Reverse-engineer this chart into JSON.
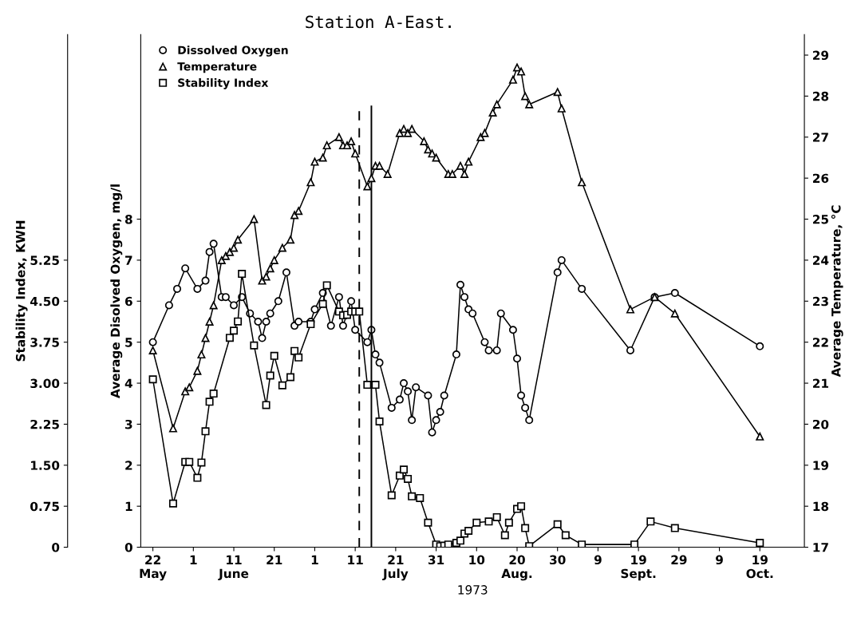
{
  "chart_data": {
    "type": "line",
    "title": "Station A-East.",
    "xlabel": "1973",
    "ylabel": "Average Disolved Oxygen, mg/l",
    "y2label": "Average Temperature, °C",
    "y3label": "Stability Index, KWH",
    "xlim": [
      "1973-05-19",
      "1973-10-30"
    ],
    "xticks": [
      {
        "value": "1973-05-22",
        "label": "22\nMay"
      },
      {
        "value": "1973-06-01",
        "label": "1\n"
      },
      {
        "value": "1973-06-11",
        "label": "11\nJune"
      },
      {
        "value": "1973-06-21",
        "label": "21\n"
      },
      {
        "value": "1973-07-01",
        "label": "1\n"
      },
      {
        "value": "1973-07-11",
        "label": "11\n"
      },
      {
        "value": "1973-07-21",
        "label": "21\nJuly"
      },
      {
        "value": "1973-07-31",
        "label": "31\n"
      },
      {
        "value": "1973-08-10",
        "label": "10\n"
      },
      {
        "value": "1973-08-20",
        "label": "20\nAug."
      },
      {
        "value": "1973-08-30",
        "label": "30\n"
      },
      {
        "value": "1973-09-09",
        "label": "9\n"
      },
      {
        "value": "1973-09-19",
        "label": "19\nSept."
      },
      {
        "value": "1973-09-29",
        "label": "29\n"
      },
      {
        "value": "1973-10-09",
        "label": "9\n"
      },
      {
        "value": "1973-10-19",
        "label": "19\nOct."
      }
    ],
    "ylim": [
      0,
      12.5
    ],
    "yticks": [
      0,
      1,
      2,
      3,
      4,
      5,
      6,
      7,
      8
    ],
    "y2lim": [
      17,
      29.5
    ],
    "y2ticks": [
      17,
      18,
      19,
      20,
      21,
      22,
      23,
      24,
      25,
      26,
      27,
      28,
      29
    ],
    "y3lim": [
      0,
      9.375
    ],
    "y3ticks": [
      0,
      0.75,
      {
        "value": 1.5,
        "label": "1.50"
      },
      2.25,
      {
        "value": 3.0,
        "label": "3.00"
      },
      3.75,
      {
        "value": 4.5,
        "label": "4.50"
      },
      5.25
    ],
    "legend": "top left",
    "ref_lines": [
      {
        "axis": "x",
        "value": "1973-07-12",
        "line_style": "dashed",
        "color": "#000000"
      },
      {
        "axis": "x",
        "value": "1973-07-15",
        "line_style": "solid",
        "color": "#000000"
      }
    ],
    "series": [
      {
        "name": "Dissolved Oxygen",
        "color": "#000000",
        "axis": "y",
        "marker": "circle",
        "line_style": "solid",
        "x": [
          "1973-05-22",
          "1973-05-26",
          "1973-05-28",
          "1973-05-30",
          "1973-06-02",
          "1973-06-04",
          "1973-06-05",
          "1973-06-06",
          "1973-06-08",
          "1973-06-09",
          "1973-06-11",
          "1973-06-13",
          "1973-06-15",
          "1973-06-17",
          "1973-06-18",
          "1973-06-19",
          "1973-06-20",
          "1973-06-22",
          "1973-06-24",
          "1973-06-26",
          "1973-06-27",
          "1973-06-30",
          "1973-07-01",
          "1973-07-03",
          "1973-07-05",
          "1973-07-07",
          "1973-07-08",
          "1973-07-10",
          "1973-07-11",
          "1973-07-14",
          "1973-07-15",
          "1973-07-16",
          "1973-07-17",
          "1973-07-20",
          "1973-07-22",
          "1973-07-23",
          "1973-07-24",
          "1973-07-25",
          "1973-07-26",
          "1973-07-29",
          "1973-07-30",
          "1973-07-31",
          "1973-08-01",
          "1973-08-02",
          "1973-08-05",
          "1973-08-06",
          "1973-08-07",
          "1973-08-08",
          "1973-08-09",
          "1973-08-12",
          "1973-08-13",
          "1973-08-15",
          "1973-08-16",
          "1973-08-19",
          "1973-08-20",
          "1973-08-21",
          "1973-08-22",
          "1973-08-23",
          "1973-08-30",
          "1973-08-31",
          "1973-09-05",
          "1973-09-17",
          "1973-09-23",
          "1973-09-28",
          "1973-10-19"
        ],
        "values": [
          5.0,
          5.9,
          6.3,
          6.8,
          6.3,
          6.5,
          7.2,
          7.4,
          6.1,
          6.1,
          5.9,
          6.1,
          5.7,
          5.5,
          5.1,
          5.5,
          5.7,
          6.0,
          6.7,
          5.4,
          5.5,
          5.5,
          5.8,
          6.2,
          5.4,
          6.1,
          5.4,
          6.0,
          5.3,
          5.0,
          5.3,
          4.7,
          4.5,
          3.4,
          3.6,
          4.0,
          3.8,
          3.1,
          3.9,
          3.7,
          2.8,
          3.1,
          3.3,
          3.7,
          4.7,
          6.4,
          6.1,
          5.8,
          5.7,
          5.0,
          4.8,
          4.8,
          5.7,
          5.3,
          4.6,
          3.7,
          3.4,
          3.1,
          6.7,
          7.0,
          6.3,
          4.8,
          6.1,
          6.2,
          4.9
        ]
      },
      {
        "name": "Temperature",
        "color": "#000000",
        "axis": "y2",
        "marker": "triangle",
        "line_style": "solid",
        "x": [
          "1973-05-22",
          "1973-05-27",
          "1973-05-30",
          "1973-05-31",
          "1973-06-02",
          "1973-06-03",
          "1973-06-04",
          "1973-06-05",
          "1973-06-06",
          "1973-06-08",
          "1973-06-09",
          "1973-06-10",
          "1973-06-11",
          "1973-06-12",
          "1973-06-16",
          "1973-06-18",
          "1973-06-19",
          "1973-06-20",
          "1973-06-21",
          "1973-06-23",
          "1973-06-25",
          "1973-06-26",
          "1973-06-27",
          "1973-06-30",
          "1973-07-01",
          "1973-07-03",
          "1973-07-04",
          "1973-07-07",
          "1973-07-08",
          "1973-07-09",
          "1973-07-10",
          "1973-07-11",
          "1973-07-14",
          "1973-07-15",
          "1973-07-16",
          "1973-07-17",
          "1973-07-19",
          "1973-07-22",
          "1973-07-23",
          "1973-07-24",
          "1973-07-25",
          "1973-07-28",
          "1973-07-29",
          "1973-07-30",
          "1973-07-31",
          "1973-08-03",
          "1973-08-04",
          "1973-08-06",
          "1973-08-07",
          "1973-08-08",
          "1973-08-11",
          "1973-08-12",
          "1973-08-14",
          "1973-08-15",
          "1973-08-19",
          "1973-08-20",
          "1973-08-21",
          "1973-08-22",
          "1973-08-23",
          "1973-08-30",
          "1973-08-31",
          "1973-09-05",
          "1973-09-17",
          "1973-09-23",
          "1973-09-28",
          "1973-10-19"
        ],
        "values": [
          21.8,
          19.9,
          20.8,
          20.9,
          21.3,
          21.7,
          22.1,
          22.5,
          22.9,
          24.0,
          24.1,
          24.2,
          24.3,
          24.5,
          25.0,
          23.5,
          23.6,
          23.8,
          24.0,
          24.3,
          24.5,
          25.1,
          25.2,
          25.9,
          26.4,
          26.5,
          26.8,
          27.0,
          26.8,
          26.8,
          26.9,
          26.6,
          25.8,
          26.0,
          26.3,
          26.3,
          26.1,
          27.1,
          27.2,
          27.1,
          27.2,
          26.9,
          26.7,
          26.6,
          26.5,
          26.1,
          26.1,
          26.3,
          26.1,
          26.4,
          27.0,
          27.1,
          27.6,
          27.8,
          28.4,
          28.7,
          28.6,
          28.0,
          27.8,
          28.1,
          27.7,
          25.9,
          22.8,
          23.1,
          22.7,
          19.7
        ]
      },
      {
        "name": "Stability Index",
        "color": "#000000",
        "axis": "y3",
        "marker": "square",
        "line_style": "solid",
        "x": [
          "1973-05-22",
          "1973-05-27",
          "1973-05-30",
          "1973-05-31",
          "1973-06-02",
          "1973-06-03",
          "1973-06-04",
          "1973-06-05",
          "1973-06-06",
          "1973-06-10",
          "1973-06-11",
          "1973-06-12",
          "1973-06-13",
          "1973-06-16",
          "1973-06-19",
          "1973-06-20",
          "1973-06-21",
          "1973-06-23",
          "1973-06-25",
          "1973-06-26",
          "1973-06-27",
          "1973-06-30",
          "1973-07-03",
          "1973-07-04",
          "1973-07-07",
          "1973-07-08",
          "1973-07-09",
          "1973-07-10",
          "1973-07-11",
          "1973-07-12",
          "1973-07-14",
          "1973-07-16",
          "1973-07-17",
          "1973-07-20",
          "1973-07-22",
          "1973-07-23",
          "1973-07-24",
          "1973-07-25",
          "1973-07-27",
          "1973-07-29",
          "1973-07-31",
          "1973-08-01",
          "1973-08-02",
          "1973-08-03",
          "1973-08-05",
          "1973-08-06",
          "1973-08-07",
          "1973-08-08",
          "1973-08-10",
          "1973-08-13",
          "1973-08-15",
          "1973-08-17",
          "1973-08-18",
          "1973-08-20",
          "1973-08-21",
          "1973-08-22",
          "1973-08-23",
          "1973-08-30",
          "1973-09-01",
          "1973-09-05",
          "1973-09-18",
          "1973-09-22",
          "1973-09-28",
          "1973-10-19"
        ],
        "values": [
          3.07,
          0.8,
          1.56,
          1.56,
          1.27,
          1.55,
          2.12,
          2.66,
          2.81,
          3.83,
          3.96,
          4.13,
          5.0,
          3.69,
          2.6,
          3.14,
          3.5,
          2.96,
          3.11,
          3.59,
          3.47,
          4.08,
          4.45,
          4.79,
          4.31,
          4.24,
          4.25,
          4.31,
          4.31,
          4.31,
          2.97,
          2.97,
          2.3,
          0.95,
          1.31,
          1.42,
          1.25,
          0.93,
          0.9,
          0.45,
          0.05,
          0.02,
          0.03,
          0.05,
          0.08,
          0.12,
          0.25,
          0.3,
          0.45,
          0.47,
          0.55,
          0.22,
          0.45,
          0.7,
          0.75,
          0.35,
          0.02,
          0.42,
          0.22,
          0.05,
          0.05,
          0.47,
          0.35,
          0.08
        ]
      }
    ]
  }
}
